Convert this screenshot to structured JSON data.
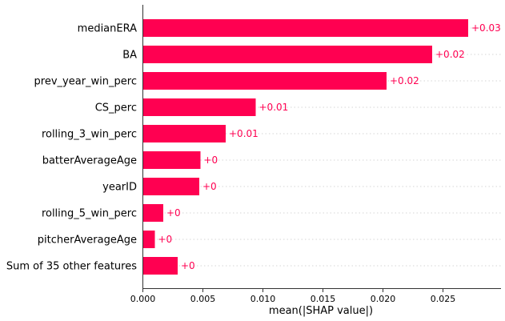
{
  "chart_data": {
    "type": "bar",
    "orientation": "horizontal",
    "categories": [
      "medianERA",
      "BA",
      "prev_year_win_perc",
      "CS_perc",
      "rolling_3_win_perc",
      "batterAverageAge",
      "yearID",
      "rolling_5_win_perc",
      "pitcherAverageAge",
      "Sum of 35 other features"
    ],
    "values": [
      0.0271,
      0.0241,
      0.0203,
      0.0094,
      0.0069,
      0.0048,
      0.0047,
      0.0017,
      0.001,
      0.0029
    ],
    "value_labels": [
      "+0.03",
      "+0.02",
      "+0.02",
      "+0.01",
      "+0.01",
      "+0",
      "+0",
      "+0",
      "+0",
      "+0"
    ],
    "xlabel": "mean(|SHAP value|)",
    "ylabel": "",
    "xlim": [
      0,
      0.0298
    ],
    "xticks": [
      0.0,
      0.005,
      0.01,
      0.015,
      0.02,
      0.025
    ],
    "xtick_labels": [
      "0.000",
      "0.005",
      "0.010",
      "0.015",
      "0.020",
      "0.025"
    ],
    "grid": "dotted horizontal row guides",
    "bar_color": "#ff0051",
    "label_color": "#ff0051"
  }
}
